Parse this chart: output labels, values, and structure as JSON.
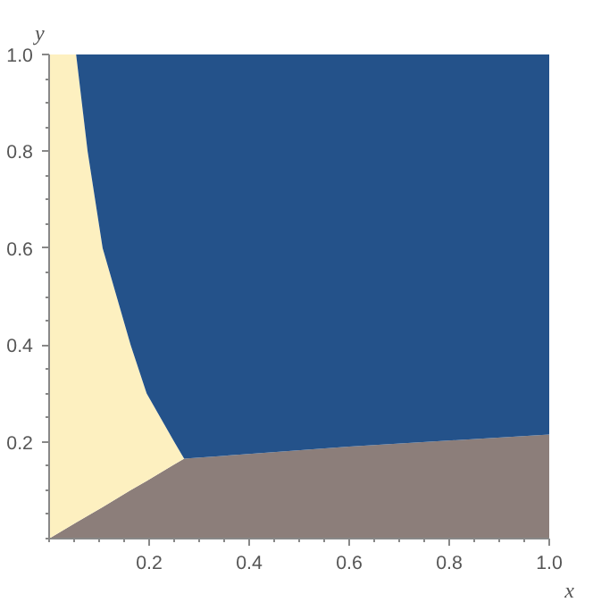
{
  "chart_data": {
    "type": "area",
    "stacked": true,
    "xlabel": "x",
    "ylabel": "y",
    "x": [
      0,
      0.054,
      0.077,
      0.107,
      0.163,
      0.195,
      0.25,
      0.27,
      0.6,
      1.0
    ],
    "series": [
      {
        "color": "#8c7e7a",
        "values": [
          0,
          0.033,
          0.047,
          0.065,
          0.1,
          0.119,
          0.153,
          0.165,
          0.19,
          0.215
        ]
      },
      {
        "color": "#fdf0c0",
        "values": [
          1,
          0.967,
          0.753,
          0.535,
          0.3,
          0.181,
          0.047,
          0,
          0,
          0
        ]
      },
      {
        "color": "#24528a",
        "values": [
          0,
          0,
          0.2,
          0.4,
          0.6,
          0.7,
          0.8,
          0.835,
          0.81,
          0.785
        ]
      }
    ],
    "xlim": [
      0,
      1
    ],
    "ylim": [
      0,
      1
    ],
    "xticks": [
      0.2,
      0.4,
      0.6,
      0.8,
      {
        "value": 1,
        "label": "1.0"
      }
    ],
    "yticks": [
      0.2,
      0.4,
      0.6,
      0.8,
      {
        "value": 1,
        "label": "1.0"
      }
    ],
    "grid": false
  }
}
